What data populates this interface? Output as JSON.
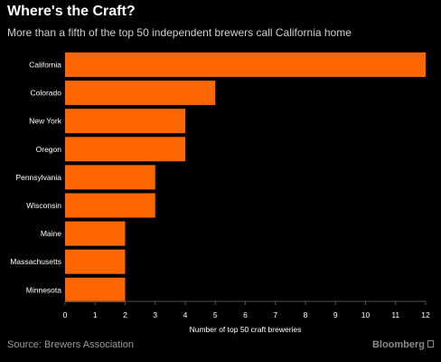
{
  "header": {
    "title": "Where's the Craft?",
    "subtitle": "More than a fifth of the top 50 independent brewers call California home"
  },
  "footer": {
    "source": "Source: Brewers Association",
    "brand": "Bloomberg"
  },
  "colors": {
    "background": "#000000",
    "bar": "#ff6600",
    "text": "#ffffff",
    "axis": "#555555"
  },
  "chart_data": {
    "type": "bar",
    "orientation": "horizontal",
    "categories": [
      "California",
      "Colorado",
      "New York",
      "Oregon",
      "Pennsylvania",
      "Wisconsin",
      "Maine",
      "Massachusetts",
      "Minnesota"
    ],
    "values": [
      12,
      5,
      4,
      4,
      3,
      3,
      2,
      2,
      2
    ],
    "title": "Where's the Craft?",
    "subtitle": "More than a fifth of the top 50 independent brewers call California home",
    "xlabel": "Number of top 50 craft breweries",
    "ylabel": "",
    "xlim": [
      0,
      12
    ],
    "xticks": [
      0,
      1,
      2,
      3,
      4,
      5,
      6,
      7,
      8,
      9,
      10,
      11,
      12
    ],
    "grid": false,
    "legend": "none"
  }
}
